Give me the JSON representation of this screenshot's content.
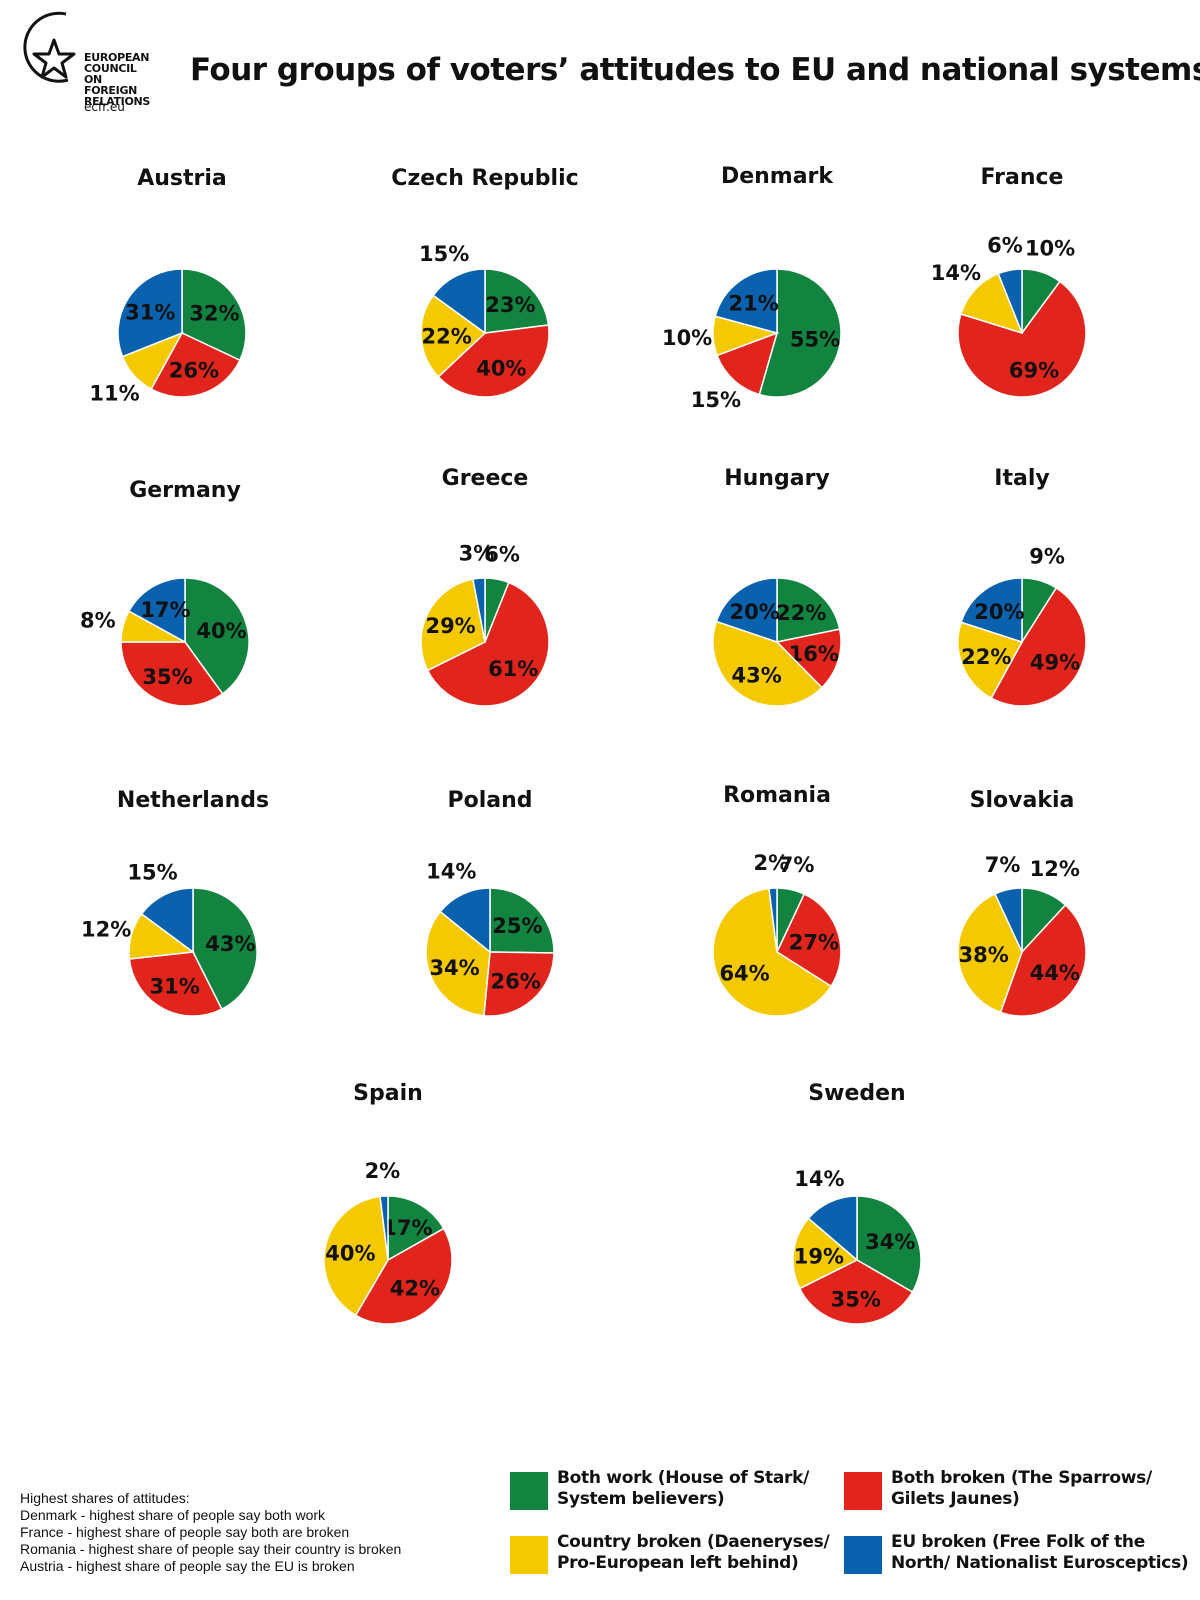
{
  "header": {
    "logo_lines": [
      "EUROPEAN",
      "COUNCIL",
      "ON FOREIGN",
      "RELATIONS"
    ],
    "logo_url": "ecfr.eu",
    "title": "Four groups of voters’ attitudes to EU and national systems"
  },
  "colors": {
    "green": "#13843f",
    "red": "#e1251d",
    "yellow": "#f4c900",
    "blue": "#0a61ad"
  },
  "chart_data": [
    {
      "type": "pie",
      "title": "Austria",
      "series": [
        {
          "name": "Both work (House of Stark/ System believers)",
          "value": 32
        },
        {
          "name": "Both broken (The Sparrows/ Gilets Jaunes)",
          "value": 26
        },
        {
          "name": "Country broken (Daeneryses/ Pro-European left behind)",
          "value": 11
        },
        {
          "name": "EU broken (Free Folk of the North/ Nationalist Eurosceptics)",
          "value": 31
        }
      ]
    },
    {
      "type": "pie",
      "title": "Czech Republic",
      "series": [
        {
          "name": "Both work (House of Stark/ System believers)",
          "value": 23
        },
        {
          "name": "Both broken (The Sparrows/ Gilets Jaunes)",
          "value": 40
        },
        {
          "name": "Country broken (Daeneryses/ Pro-European left behind)",
          "value": 22
        },
        {
          "name": "EU broken (Free Folk of the North/ Nationalist Eurosceptics)",
          "value": 15
        }
      ]
    },
    {
      "type": "pie",
      "title": "Denmark",
      "series": [
        {
          "name": "Both work (House of Stark/ System believers)",
          "value": 55
        },
        {
          "name": "Both broken (The Sparrows/ Gilets Jaunes)",
          "value": 15
        },
        {
          "name": "Country broken (Daeneryses/ Pro-European left behind)",
          "value": 10
        },
        {
          "name": "EU broken (Free Folk of the North/ Nationalist Eurosceptics)",
          "value": 21
        }
      ]
    },
    {
      "type": "pie",
      "title": "France",
      "series": [
        {
          "name": "Both work (House of Stark/ System believers)",
          "value": 10
        },
        {
          "name": "Both broken (The Sparrows/ Gilets Jaunes)",
          "value": 69
        },
        {
          "name": "Country broken (Daeneryses/ Pro-European left behind)",
          "value": 14
        },
        {
          "name": "EU broken (Free Folk of the North/ Nationalist Eurosceptics)",
          "value": 6
        }
      ]
    },
    {
      "type": "pie",
      "title": "Germany",
      "series": [
        {
          "name": "Both work (House of Stark/ System believers)",
          "value": 40
        },
        {
          "name": "Both broken (The Sparrows/ Gilets Jaunes)",
          "value": 35
        },
        {
          "name": "Country broken (Daeneryses/ Pro-European left behind)",
          "value": 8
        },
        {
          "name": "EU broken (Free Folk of the North/ Nationalist Eurosceptics)",
          "value": 17
        }
      ]
    },
    {
      "type": "pie",
      "title": "Greece",
      "series": [
        {
          "name": "Both work (House of Stark/ System believers)",
          "value": 6
        },
        {
          "name": "Both broken (The Sparrows/ Gilets Jaunes)",
          "value": 61
        },
        {
          "name": "Country broken (Daeneryses/ Pro-European left behind)",
          "value": 29
        },
        {
          "name": "EU broken (Free Folk of the North/ Nationalist Eurosceptics)",
          "value": 3
        }
      ]
    },
    {
      "type": "pie",
      "title": "Hungary",
      "series": [
        {
          "name": "Both work (House of Stark/ System believers)",
          "value": 22
        },
        {
          "name": "Both broken (The Sparrows/ Gilets Jaunes)",
          "value": 16
        },
        {
          "name": "Country broken (Daeneryses/ Pro-European left behind)",
          "value": 43
        },
        {
          "name": "EU broken (Free Folk of the North/ Nationalist Eurosceptics)",
          "value": 20
        }
      ]
    },
    {
      "type": "pie",
      "title": "Italy",
      "series": [
        {
          "name": "Both work (House of Stark/ System believers)",
          "value": 9
        },
        {
          "name": "Both broken (The Sparrows/ Gilets Jaunes)",
          "value": 49
        },
        {
          "name": "Country broken (Daeneryses/ Pro-European left behind)",
          "value": 22
        },
        {
          "name": "EU broken (Free Folk of the North/ Nationalist Eurosceptics)",
          "value": 20
        }
      ]
    },
    {
      "type": "pie",
      "title": "Netherlands",
      "series": [
        {
          "name": "Both work (House of Stark/ System believers)",
          "value": 43
        },
        {
          "name": "Both broken (The Sparrows/ Gilets Jaunes)",
          "value": 31
        },
        {
          "name": "Country broken (Daeneryses/ Pro-European left behind)",
          "value": 12
        },
        {
          "name": "EU broken (Free Folk of the North/ Nationalist Eurosceptics)",
          "value": 15
        }
      ]
    },
    {
      "type": "pie",
      "title": "Poland",
      "series": [
        {
          "name": "Both work (House of Stark/ System believers)",
          "value": 25
        },
        {
          "name": "Both broken (The Sparrows/ Gilets Jaunes)",
          "value": 26
        },
        {
          "name": "Country broken (Daeneryses/ Pro-European left behind)",
          "value": 34
        },
        {
          "name": "EU broken (Free Folk of the North/ Nationalist Eurosceptics)",
          "value": 14
        }
      ]
    },
    {
      "type": "pie",
      "title": "Romania",
      "series": [
        {
          "name": "Both work (House of Stark/ System believers)",
          "value": 7
        },
        {
          "name": "Both broken (The Sparrows/ Gilets Jaunes)",
          "value": 27
        },
        {
          "name": "Country broken (Daeneryses/ Pro-European left behind)",
          "value": 64
        },
        {
          "name": "EU broken (Free Folk of the North/ Nationalist Eurosceptics)",
          "value": 2
        }
      ]
    },
    {
      "type": "pie",
      "title": "Slovakia",
      "series": [
        {
          "name": "Both work (House of Stark/ System believers)",
          "value": 12
        },
        {
          "name": "Both broken (The Sparrows/ Gilets Jaunes)",
          "value": 44
        },
        {
          "name": "Country broken (Daeneryses/ Pro-European left behind)",
          "value": 38
        },
        {
          "name": "EU broken (Free Folk of the North/ Nationalist Eurosceptics)",
          "value": 7
        }
      ]
    },
    {
      "type": "pie",
      "title": "Spain",
      "series": [
        {
          "name": "Both work (House of Stark/ System believers)",
          "value": 17
        },
        {
          "name": "Both broken (The Sparrows/ Gilets Jaunes)",
          "value": 42
        },
        {
          "name": "Country broken (Daeneryses/ Pro-European left behind)",
          "value": 40
        },
        {
          "name": "EU broken (Free Folk of the North/ Nationalist Eurosceptics)",
          "value": 2
        }
      ]
    },
    {
      "type": "pie",
      "title": "Sweden",
      "series": [
        {
          "name": "Both work (House of Stark/ System believers)",
          "value": 34
        },
        {
          "name": "Both broken (The Sparrows/ Gilets Jaunes)",
          "value": 35
        },
        {
          "name": "Country broken (Daeneryses/ Pro-European left behind)",
          "value": 19
        },
        {
          "name": "EU broken (Free Folk of the North/ Nationalist Eurosceptics)",
          "value": 14
        }
      ]
    }
  ],
  "legend": [
    {
      "label": "Both work (House of Stark/",
      "label2": "System believers)",
      "color": "#13843f"
    },
    {
      "label": "Both broken (The Sparrows/",
      "label2": "Gilets Jaunes)",
      "color": "#e1251d"
    },
    {
      "label": "Country broken (Daeneryses/",
      "label2": "Pro-European left behind)",
      "color": "#f4c900"
    },
    {
      "label": "EU broken (Free Folk of the",
      "label2": "North/ Nationalist Eurosceptics)",
      "color": "#0a61ad"
    }
  ],
  "notes": [
    "Highest shares of attitudes:",
    "Denmark - highest share of people say both work",
    "France - highest share of people say both are broken",
    "Romania - highest share of people say their country is broken",
    "Austria - highest share of people say the EU is broken"
  ]
}
